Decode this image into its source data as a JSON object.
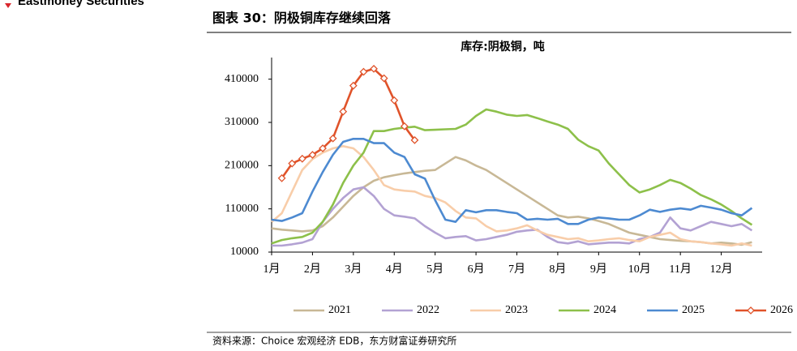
{
  "header": "Eastmoney Securities",
  "figure_title": "图表 30：阴极铜库存继续回落",
  "source": "资料来源：Choice 宏观经济 EDB，东方财富证券研究所",
  "chart_data": {
    "type": "line",
    "title": "库存:阴极铜，吨",
    "x": [
      1,
      1.25,
      1.5,
      1.75,
      2,
      2.25,
      2.5,
      2.75,
      3,
      3.25,
      3.5,
      3.75,
      4,
      4.25,
      4.5,
      4.75,
      5,
      5.25,
      5.5,
      5.75,
      6,
      6.25,
      6.5,
      6.75,
      7,
      7.25,
      7.5,
      7.75,
      8,
      8.25,
      8.5,
      8.75,
      9,
      9.25,
      9.5,
      9.75,
      10,
      10.25,
      10.5,
      10.75,
      11,
      11.25,
      11.5,
      11.75,
      12,
      12.25,
      12.5,
      12.75
    ],
    "xlim": [
      1,
      13
    ],
    "xticks": [
      {
        "value": 1,
        "label": "1月"
      },
      {
        "value": 2,
        "label": "2月"
      },
      {
        "value": 3,
        "label": "3月"
      },
      {
        "value": 4,
        "label": "4月"
      },
      {
        "value": 5,
        "label": "5月"
      },
      {
        "value": 6,
        "label": "6月"
      },
      {
        "value": 7,
        "label": "7月"
      },
      {
        "value": 8,
        "label": "8月"
      },
      {
        "value": 9,
        "label": "9月"
      },
      {
        "value": 10,
        "label": "10月"
      },
      {
        "value": 11,
        "label": "11月"
      },
      {
        "value": 12,
        "label": "12月"
      }
    ],
    "ylim": [
      10000,
      460000
    ],
    "yticks": [
      10000,
      110000,
      210000,
      310000,
      410000
    ],
    "legend": "bottom",
    "series": [
      {
        "name": "2021",
        "color": "#c8b896",
        "values": [
          65000,
          62000,
          60000,
          58000,
          60000,
          70000,
          90000,
          115000,
          140000,
          160000,
          175000,
          183000,
          188000,
          192000,
          195000,
          198000,
          200000,
          215000,
          230000,
          222000,
          210000,
          200000,
          185000,
          170000,
          155000,
          140000,
          125000,
          110000,
          95000,
          90000,
          92000,
          88000,
          82000,
          75000,
          65000,
          55000,
          50000,
          45000,
          40000,
          38000,
          36000,
          35000,
          33000,
          30000,
          32000,
          30000,
          27000,
          33000
        ]
      },
      {
        "name": "2022",
        "color": "#b3a2d3",
        "values": [
          25000,
          25000,
          28000,
          32000,
          40000,
          80000,
          110000,
          135000,
          155000,
          160000,
          140000,
          110000,
          95000,
          92000,
          88000,
          70000,
          55000,
          42000,
          45000,
          47000,
          37000,
          40000,
          45000,
          50000,
          57000,
          60000,
          62000,
          45000,
          33000,
          30000,
          35000,
          28000,
          30000,
          32000,
          32000,
          30000,
          40000,
          45000,
          55000,
          90000,
          65000,
          60000,
          70000,
          80000,
          75000,
          70000,
          75000,
          60000
        ]
      },
      {
        "name": "2023",
        "color": "#f8cda9",
        "values": [
          80000,
          100000,
          150000,
          200000,
          225000,
          240000,
          250000,
          255000,
          250000,
          230000,
          200000,
          165000,
          155000,
          152000,
          150000,
          140000,
          135000,
          125000,
          105000,
          90000,
          88000,
          70000,
          58000,
          60000,
          65000,
          72000,
          60000,
          50000,
          45000,
          40000,
          42000,
          35000,
          37000,
          40000,
          42000,
          38000,
          35000,
          45000,
          50000,
          55000,
          40000,
          35000,
          33000,
          30000,
          28000,
          25000,
          30000,
          25000
        ]
      },
      {
        "name": "2024",
        "color": "#8dc04a",
        "values": [
          30000,
          38000,
          42000,
          45000,
          55000,
          80000,
          120000,
          170000,
          210000,
          240000,
          290000,
          290000,
          295000,
          298000,
          300000,
          292000,
          293000,
          294000,
          295000,
          305000,
          325000,
          340000,
          335000,
          328000,
          325000,
          327000,
          320000,
          312000,
          305000,
          295000,
          270000,
          255000,
          245000,
          215000,
          190000,
          165000,
          148000,
          155000,
          165000,
          177000,
          170000,
          157000,
          142000,
          132000,
          120000,
          105000,
          88000,
          73000
        ]
      },
      {
        "name": "2025",
        "color": "#4d8ad1",
        "values": [
          85000,
          82000,
          90000,
          100000,
          150000,
          195000,
          235000,
          265000,
          272000,
          272000,
          262000,
          262000,
          240000,
          230000,
          190000,
          180000,
          130000,
          85000,
          80000,
          107000,
          102000,
          107000,
          107000,
          103000,
          100000,
          85000,
          87000,
          85000,
          87000,
          75000,
          75000,
          85000,
          90000,
          88000,
          85000,
          85000,
          95000,
          108000,
          103000,
          108000,
          111000,
          108000,
          117000,
          113000,
          108000,
          100000,
          95000,
          112000
        ]
      },
      {
        "name": "2026",
        "color": "#e0532a",
        "marker": "diamond",
        "values": [
          null,
          181000,
          215000,
          226000,
          235000,
          250000,
          273000,
          335000,
          395000,
          427000,
          434000,
          412000,
          361000,
          301000,
          269000,
          null,
          null,
          null,
          null,
          null,
          null,
          null,
          null,
          null,
          null,
          null,
          null,
          null,
          null,
          null,
          null,
          null,
          null,
          null,
          null,
          null,
          null,
          null,
          null,
          null,
          null,
          null,
          null,
          null,
          null,
          null,
          null,
          null
        ]
      }
    ]
  }
}
